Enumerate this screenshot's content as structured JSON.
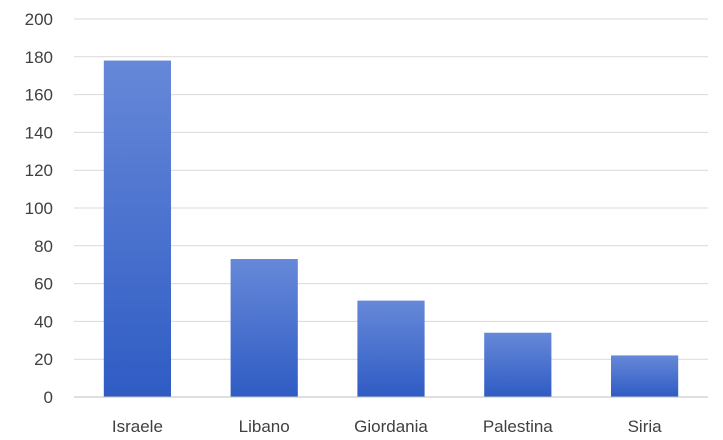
{
  "chart_data": {
    "type": "bar",
    "title": "",
    "xlabel": "",
    "ylabel": "",
    "categories": [
      "Israele",
      "Libano",
      "Giordania",
      "Palestina",
      "Siria"
    ],
    "values": [
      178,
      73,
      51,
      34,
      22
    ],
    "ylim": [
      0,
      200
    ],
    "yticks": [
      0,
      20,
      40,
      60,
      80,
      100,
      120,
      140,
      160,
      180,
      200
    ],
    "grid": true,
    "legend": "none",
    "colors": {
      "bar_top": "#6688d8",
      "bar_bottom": "#2f5cc4",
      "grid": "#d9d9d9",
      "axis": "#bfbfbf",
      "text": "#404040"
    }
  }
}
